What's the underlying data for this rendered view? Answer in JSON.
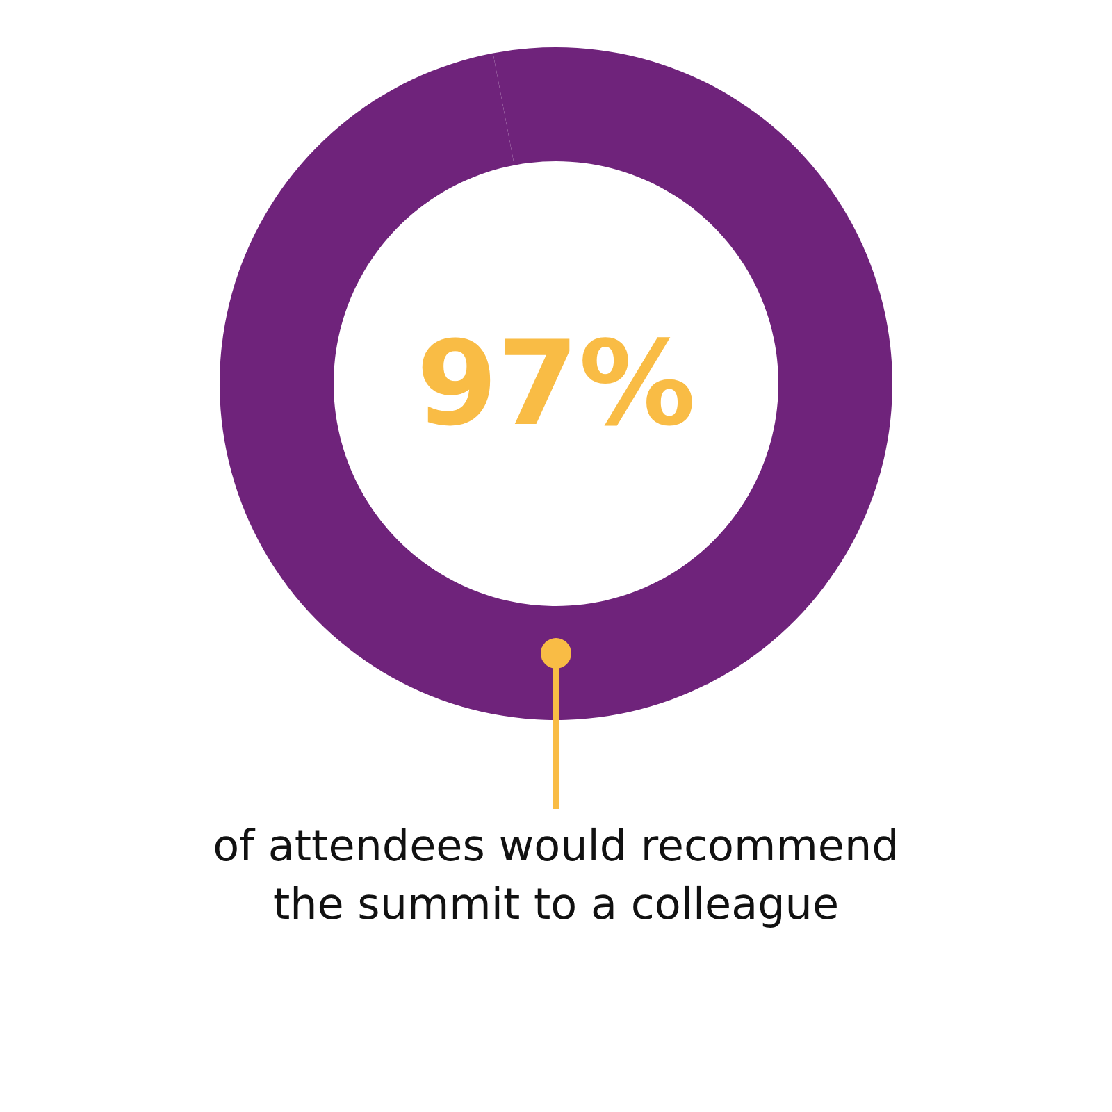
{
  "chart_data": {
    "type": "donut",
    "categories": [
      null,
      null
    ],
    "values": [
      97,
      3
    ],
    "colors": [
      "#6f237b",
      "#6f237b"
    ],
    "value_labels": [
      "97%",
      null
    ],
    "annotations": [
      "of attendees would recommend the summit to a colleague"
    ]
  }
}
